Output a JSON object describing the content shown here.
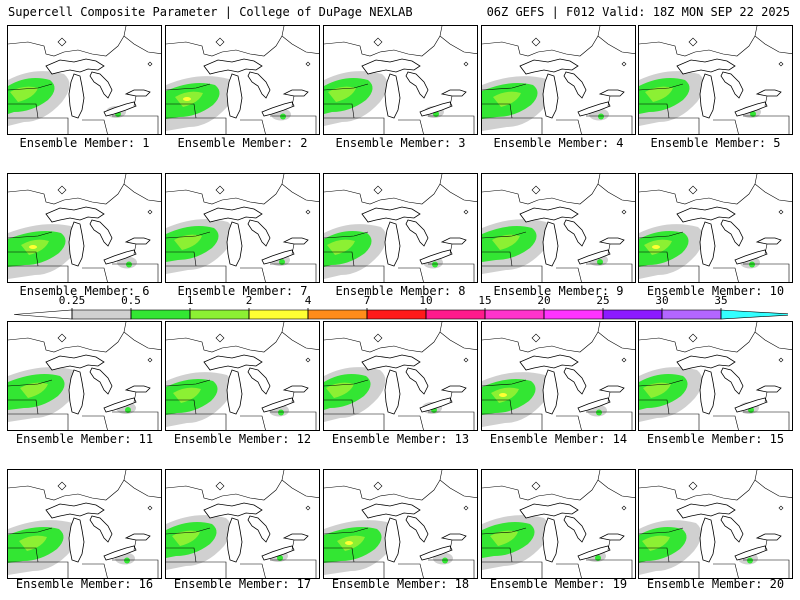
{
  "header": {
    "left_title": "Supercell Composite Parameter | College of DuPage NEXLAB",
    "right_title": "06Z GEFS | F012 Valid: 18Z MON SEP 22 2025"
  },
  "member_label_prefix": "Ensemble Member: ",
  "members": [
    {
      "number": 1,
      "label": "Ensemble Member: 1"
    },
    {
      "number": 2,
      "label": "Ensemble Member: 2"
    },
    {
      "number": 3,
      "label": "Ensemble Member: 3"
    },
    {
      "number": 4,
      "label": "Ensemble Member: 4"
    },
    {
      "number": 5,
      "label": "Ensemble Member: 5"
    },
    {
      "number": 6,
      "label": "Ensemble Member: 6"
    },
    {
      "number": 7,
      "label": "Ensemble Member: 7"
    },
    {
      "number": 8,
      "label": "Ensemble Member: 8"
    },
    {
      "number": 9,
      "label": "Ensemble Member: 9"
    },
    {
      "number": 10,
      "label": "Ensemble Member: 10"
    },
    {
      "number": 11,
      "label": "Ensemble Member: 11"
    },
    {
      "number": 12,
      "label": "Ensemble Member: 12"
    },
    {
      "number": 13,
      "label": "Ensemble Member: 13"
    },
    {
      "number": 14,
      "label": "Ensemble Member: 14"
    },
    {
      "number": 15,
      "label": "Ensemble Member: 15"
    },
    {
      "number": 16,
      "label": "Ensemble Member: 16"
    },
    {
      "number": 17,
      "label": "Ensemble Member: 17"
    },
    {
      "number": 18,
      "label": "Ensemble Member: 18"
    },
    {
      "number": 19,
      "label": "Ensemble Member: 19"
    },
    {
      "number": 20,
      "label": "Ensemble Member: 20"
    }
  ],
  "legend": {
    "ticks": [
      "0.25",
      "0.5",
      "1",
      "2",
      "4",
      "7",
      "10",
      "15",
      "20",
      "25",
      "30",
      "35"
    ],
    "colors": [
      "#d0d0d0",
      "#33e633",
      "#8cf033",
      "#ffff33",
      "#ff8c1a",
      "#ff1a1a",
      "#ff1a8c",
      "#ff33cc",
      "#ff33ff",
      "#8c1aff",
      "#b366ff",
      "#33ffff"
    ]
  },
  "map_colors": {
    "light": "#d0d0d0",
    "green": "#33e633",
    "lime": "#8cf033",
    "yellow": "#ffff33",
    "line": "#000000"
  }
}
